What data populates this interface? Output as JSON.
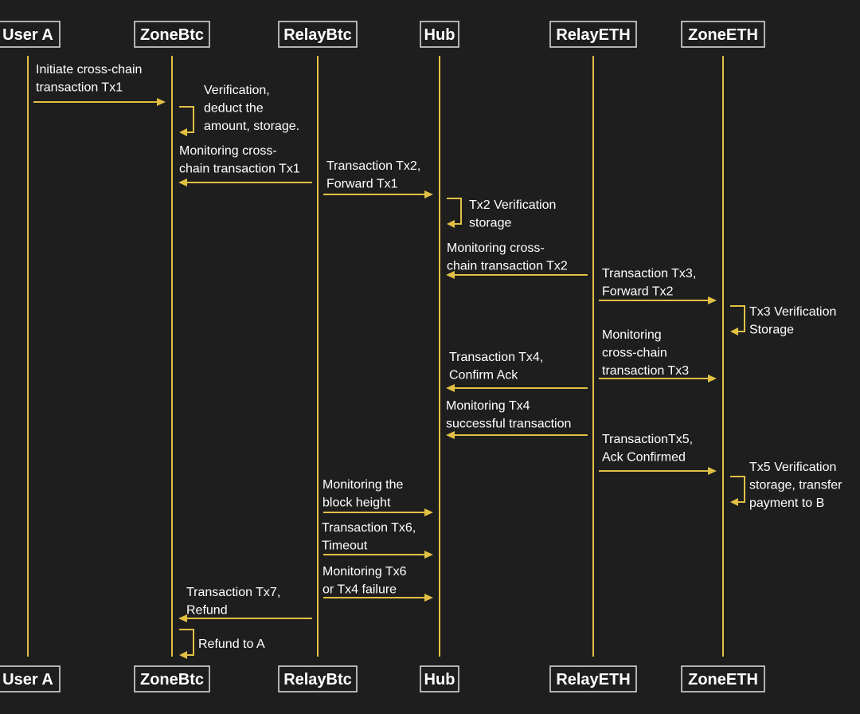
{
  "actors": [
    {
      "id": "usera",
      "label": "User A"
    },
    {
      "id": "zonebtc",
      "label": "ZoneBtc"
    },
    {
      "id": "relaybtc",
      "label": "RelayBtc"
    },
    {
      "id": "hub",
      "label": "Hub"
    },
    {
      "id": "relayeth",
      "label": "RelayETH"
    },
    {
      "id": "zoneeth",
      "label": "ZoneETH"
    }
  ],
  "messages": [
    {
      "from": "usera",
      "to": "zonebtc",
      "lines": [
        "Initiate cross-chain",
        "transaction Tx1"
      ]
    },
    {
      "from": "zonebtc",
      "to": "zonebtc",
      "lines": [
        "Verification,",
        "deduct the",
        "amount, storage."
      ]
    },
    {
      "from": "relaybtc",
      "to": "zonebtc",
      "lines": [
        "Monitoring cross-",
        "chain transaction Tx1"
      ]
    },
    {
      "from": "relaybtc",
      "to": "hub",
      "lines": [
        "Transaction Tx2,",
        "Forward Tx1"
      ]
    },
    {
      "from": "hub",
      "to": "hub",
      "lines": [
        "Tx2 Verification",
        "storage"
      ]
    },
    {
      "from": "relayeth",
      "to": "hub",
      "lines": [
        "Monitoring cross-",
        "chain transaction Tx2"
      ]
    },
    {
      "from": "relayeth",
      "to": "zoneeth",
      "lines": [
        "Transaction Tx3,",
        "Forward Tx2"
      ]
    },
    {
      "from": "zoneeth",
      "to": "zoneeth",
      "lines": [
        "Tx3 Verification",
        "Storage"
      ]
    },
    {
      "from": "relayeth",
      "to": "zoneeth",
      "lines": [
        "Monitoring",
        "cross-chain",
        "transaction Tx3"
      ]
    },
    {
      "from": "relayeth",
      "to": "hub",
      "lines": [
        "Transaction Tx4,",
        "Confirm Ack"
      ]
    },
    {
      "from": "relayeth",
      "to": "hub",
      "lines": [
        "Monitoring Tx4",
        "successful transaction"
      ]
    },
    {
      "from": "relayeth",
      "to": "zoneeth",
      "lines": [
        "TransactionTx5,",
        "Ack Confirmed"
      ]
    },
    {
      "from": "zoneeth",
      "to": "zoneeth",
      "lines": [
        "Tx5 Verification",
        "storage, transfer",
        "payment to B"
      ]
    },
    {
      "from": "relaybtc",
      "to": "hub",
      "lines": [
        "Monitoring the",
        "block height"
      ]
    },
    {
      "from": "relaybtc",
      "to": "hub",
      "lines": [
        "Transaction Tx6,",
        "Timeout"
      ]
    },
    {
      "from": "relaybtc",
      "to": "hub",
      "lines": [
        "Monitoring Tx6",
        "or Tx4 failure"
      ]
    },
    {
      "from": "relaybtc",
      "to": "zonebtc",
      "lines": [
        "Transaction Tx7,",
        "Refund"
      ]
    },
    {
      "from": "zonebtc",
      "to": "zonebtc",
      "lines": [
        "Refund to A"
      ]
    }
  ]
}
